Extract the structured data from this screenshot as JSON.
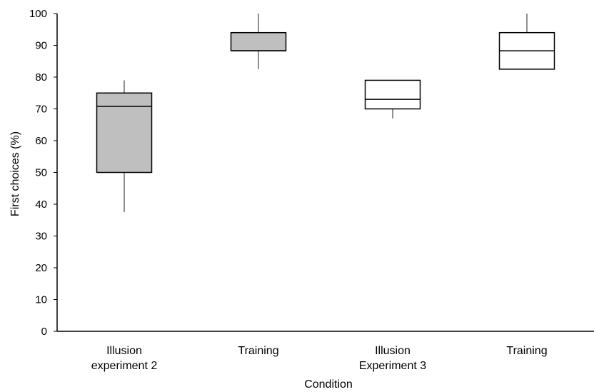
{
  "chart_data": {
    "type": "boxplot",
    "xlabel": "Condition",
    "ylabel": "First choices (%)",
    "ylim": [
      0,
      100
    ],
    "yticks": [
      0,
      10,
      20,
      30,
      40,
      50,
      60,
      70,
      80,
      90,
      100
    ],
    "grid": false,
    "legend": "none",
    "categories": [
      [
        "Illusion",
        "experiment 2"
      ],
      [
        "Training"
      ],
      [
        "Illusion",
        "Experiment 3"
      ],
      [
        "Training"
      ]
    ],
    "boxes": [
      {
        "min": 37.5,
        "q1": 50,
        "median": 70.8,
        "q3": 75,
        "max": 79,
        "fill": "#bfbfbf"
      },
      {
        "min": 82.5,
        "q1": 88.3,
        "median": 88.3,
        "q3": 94,
        "max": 100,
        "fill": "#bfbfbf"
      },
      {
        "min": 67,
        "q1": 70,
        "median": 73,
        "q3": 79,
        "max": 79,
        "fill": "#ffffff"
      },
      {
        "min": 82.5,
        "q1": 82.5,
        "median": 88.3,
        "q3": 94,
        "max": 100,
        "fill": "#ffffff"
      }
    ]
  }
}
